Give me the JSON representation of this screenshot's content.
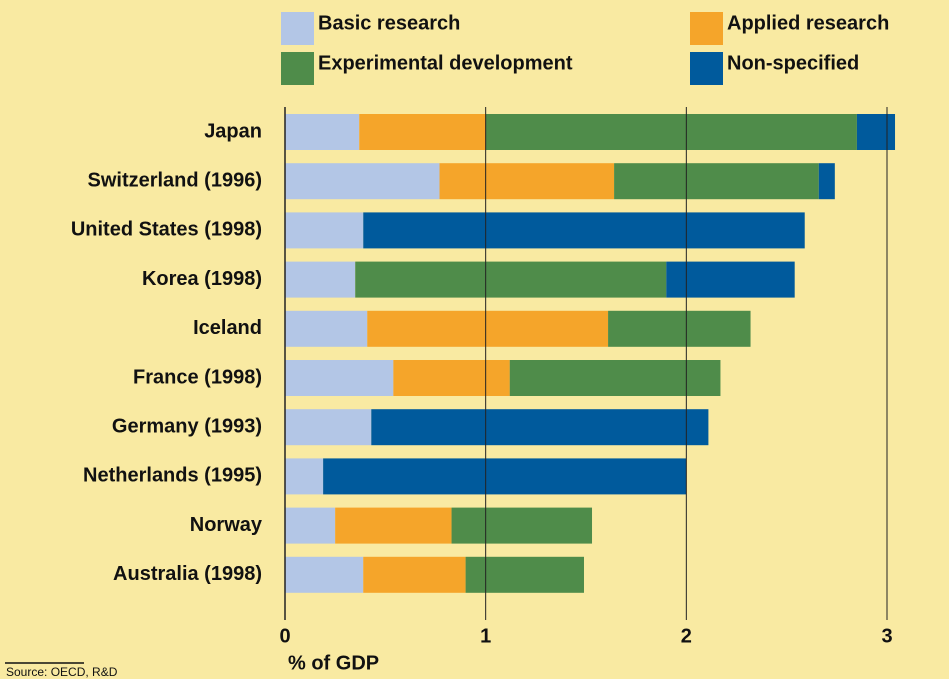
{
  "chart_data": {
    "type": "stacked-bar-horizontal",
    "categories": [
      "Japan",
      "Switzerland (1996)",
      "United States (1998)",
      "Korea (1998)",
      "Iceland",
      "France (1998)",
      "Germany (1993)",
      "Netherlands (1995)",
      "Norway",
      "Australia (1998)"
    ],
    "series": [
      {
        "name": "Basic research",
        "color": "#b3c6e6",
        "values": [
          0.37,
          0.77,
          0.39,
          0.35,
          0.41,
          0.54,
          0.43,
          0.19,
          0.25,
          0.39
        ]
      },
      {
        "name": "Applied research",
        "color": "#f5a52a",
        "values": [
          0.63,
          0.87,
          null,
          null,
          1.2,
          0.58,
          null,
          null,
          0.58,
          0.51
        ]
      },
      {
        "name": "Experimental development",
        "color": "#4f8c4a",
        "values": [
          1.85,
          1.02,
          null,
          1.55,
          0.71,
          1.05,
          null,
          null,
          0.7,
          0.59
        ]
      },
      {
        "name": "Non-specified",
        "color": "#005a9c",
        "values": [
          0.19,
          0.08,
          2.2,
          0.64,
          null,
          null,
          1.68,
          1.81,
          null,
          null
        ]
      }
    ],
    "xlim": [
      0,
      3
    ],
    "xticks": [
      0,
      1,
      2,
      3
    ],
    "grid": true,
    "xlabel": "% of GDP",
    "source": "Source: OECD, R&D"
  }
}
